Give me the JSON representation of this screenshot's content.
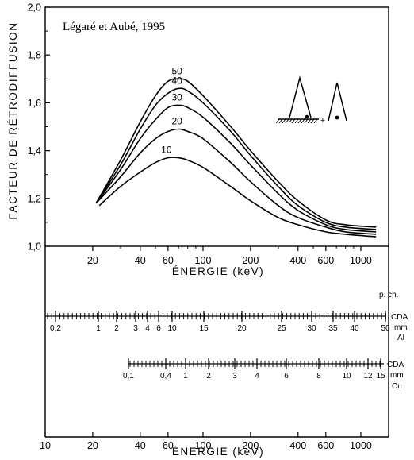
{
  "chart_data": {
    "type": "line",
    "caption": "Légaré et Aubé, 1995",
    "ylabel": "FACTEUR DE RÉTRODIFFUSION",
    "xlabel": "ÉNERGIE (keV)",
    "xscale": "log",
    "xlim": [
      10,
      1500
    ],
    "ylim": [
      1.0,
      2.0
    ],
    "yticks": [
      1.0,
      1.2,
      1.4,
      1.6,
      1.8,
      2.0
    ],
    "ytick_labels": [
      "1,0",
      "1,2",
      "1,4",
      "1,6",
      "1,8",
      "2,0"
    ],
    "xticks": [
      20,
      40,
      60,
      100,
      200,
      400,
      600,
      1000
    ],
    "xtick_labels": [
      "20",
      "40",
      "60",
      "100",
      "200",
      "400",
      "600",
      "1000"
    ],
    "grid": false,
    "series": [
      {
        "name": "10",
        "x": [
          22,
          30,
          40,
          50,
          60,
          70,
          80,
          100,
          150,
          200,
          300,
          400,
          600,
          800,
          1250
        ],
        "y": [
          1.17,
          1.25,
          1.31,
          1.35,
          1.37,
          1.37,
          1.36,
          1.33,
          1.25,
          1.19,
          1.12,
          1.09,
          1.06,
          1.05,
          1.04
        ]
      },
      {
        "name": "20",
        "x": [
          21,
          30,
          40,
          50,
          60,
          70,
          80,
          100,
          150,
          200,
          300,
          400,
          600,
          800,
          1250
        ],
        "y": [
          1.18,
          1.29,
          1.39,
          1.45,
          1.48,
          1.49,
          1.48,
          1.45,
          1.35,
          1.27,
          1.17,
          1.12,
          1.08,
          1.06,
          1.05
        ]
      },
      {
        "name": "30",
        "x": [
          21,
          30,
          40,
          50,
          60,
          70,
          80,
          100,
          150,
          200,
          300,
          400,
          600,
          800,
          1250
        ],
        "y": [
          1.18,
          1.32,
          1.45,
          1.53,
          1.58,
          1.59,
          1.58,
          1.54,
          1.43,
          1.34,
          1.22,
          1.15,
          1.09,
          1.07,
          1.06
        ]
      },
      {
        "name": "40",
        "x": [
          21,
          30,
          40,
          50,
          60,
          70,
          80,
          100,
          150,
          200,
          300,
          400,
          600,
          800,
          1250
        ],
        "y": [
          1.18,
          1.34,
          1.49,
          1.59,
          1.64,
          1.66,
          1.65,
          1.6,
          1.48,
          1.38,
          1.25,
          1.17,
          1.1,
          1.08,
          1.07
        ]
      },
      {
        "name": "50",
        "x": [
          21,
          30,
          40,
          50,
          60,
          70,
          80,
          100,
          150,
          200,
          300,
          400,
          600,
          800,
          1250
        ],
        "y": [
          1.18,
          1.36,
          1.52,
          1.63,
          1.69,
          1.7,
          1.69,
          1.63,
          1.5,
          1.4,
          1.27,
          1.19,
          1.11,
          1.09,
          1.08
        ]
      }
    ],
    "scale_labels": {
      "pch": "p. ch.",
      "al_unit": [
        "CDA",
        "mm",
        "Al"
      ],
      "al_ticks": [
        "0,2",
        "1",
        "2",
        "3",
        "4",
        "6",
        "10",
        "15",
        "20",
        "25",
        "30",
        "35",
        "40",
        "50"
      ],
      "cu_unit": [
        "CDA",
        "mm",
        "Cu"
      ],
      "cu_ticks": [
        "0,1",
        "0,4",
        "1",
        "2",
        "3",
        "4",
        "6",
        "8",
        "10",
        "12",
        "15"
      ]
    },
    "bottom_axis": {
      "xticks": [
        10,
        20,
        40,
        60,
        100,
        200,
        400,
        600,
        1000
      ],
      "xtick_labels": [
        "10",
        "20",
        "40",
        "60",
        "100",
        "200",
        "400",
        "600",
        "1000"
      ],
      "xlabel": "ÉNERGIE (keV)"
    }
  }
}
